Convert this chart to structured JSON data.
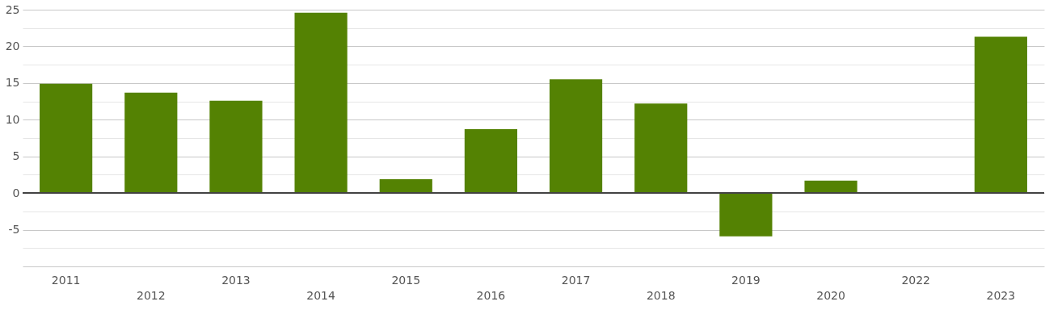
{
  "chart_data": {
    "type": "bar",
    "categories": [
      "2011",
      "2012",
      "2013",
      "2014",
      "2015",
      "2016",
      "2017",
      "2018",
      "2019",
      "2020",
      "2022",
      "2023"
    ],
    "values": [
      14.9,
      13.7,
      12.6,
      24.6,
      1.9,
      8.7,
      15.5,
      12.2,
      -5.9,
      1.7,
      null,
      21.3
    ],
    "color": "#548203",
    "ylim": [
      -10,
      25
    ],
    "yticks": [
      {
        "value": -10,
        "label": null
      },
      {
        "value": -7.5,
        "label": null
      },
      -5,
      {
        "value": -2.5,
        "label": null
      },
      0,
      {
        "value": 2.5,
        "label": null
      },
      5,
      {
        "value": 7.5,
        "label": null
      },
      10,
      {
        "value": 12.5,
        "label": null
      },
      15,
      {
        "value": 17.5,
        "label": null
      },
      20,
      {
        "value": 22.5,
        "label": null
      },
      25
    ],
    "ref_lines": [
      {
        "axis": "y",
        "value": 0,
        "color": "#444444"
      }
    ],
    "grid": "y"
  }
}
